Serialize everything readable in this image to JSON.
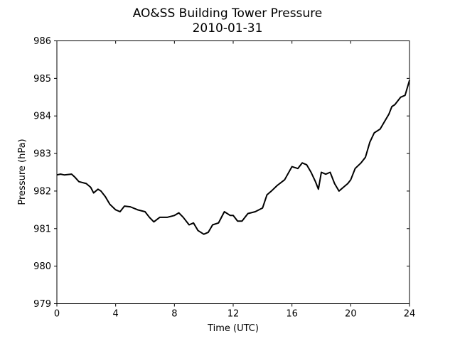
{
  "chart_data": {
    "type": "line",
    "title": "AO&SS Building Tower Pressure",
    "subtitle": "2010-01-31",
    "x_label": "Time (UTC)",
    "y_label": "Pressure (hPa)",
    "color": "#000000",
    "xlim": [
      0,
      24
    ],
    "ylim": [
      979,
      986
    ],
    "xticks": [
      0,
      4,
      8,
      12,
      16,
      20,
      24
    ],
    "yticks": [
      979,
      980,
      981,
      982,
      983,
      984,
      985,
      986
    ],
    "x": [
      0,
      0.25,
      0.5,
      1,
      1.2,
      1.5,
      2,
      2.3,
      2.5,
      2.8,
      3,
      3.3,
      3.6,
      4,
      4.3,
      4.6,
      5,
      5.5,
      6,
      6.3,
      6.6,
      7,
      7.5,
      8,
      8.3,
      8.6,
      9,
      9.3,
      9.6,
      10,
      10.3,
      10.6,
      11,
      11.4,
      11.8,
      12,
      12.3,
      12.6,
      13,
      13.5,
      14,
      14.3,
      14.6,
      15,
      15.5,
      16,
      16.4,
      16.7,
      17,
      17.3,
      17.6,
      17.8,
      18,
      18.3,
      18.6,
      18.9,
      19.2,
      19.5,
      19.8,
      20,
      20.3,
      20.7,
      21,
      21.3,
      21.6,
      22,
      22.3,
      22.6,
      22.8,
      23,
      23.4,
      23.7,
      24
    ],
    "values": [
      982.43,
      982.45,
      982.43,
      982.45,
      982.38,
      982.25,
      982.2,
      982.1,
      981.95,
      982.05,
      982.0,
      981.85,
      981.65,
      981.5,
      981.45,
      981.6,
      981.58,
      981.5,
      981.45,
      981.3,
      981.18,
      981.3,
      981.3,
      981.35,
      981.42,
      981.3,
      981.1,
      981.15,
      980.95,
      980.85,
      980.9,
      981.1,
      981.15,
      981.45,
      981.35,
      981.35,
      981.2,
      981.2,
      981.4,
      981.45,
      981.55,
      981.9,
      982.0,
      982.15,
      982.3,
      982.65,
      982.6,
      982.75,
      982.7,
      982.5,
      982.25,
      982.05,
      982.5,
      982.45,
      982.5,
      982.2,
      982.0,
      982.1,
      982.2,
      982.3,
      982.6,
      982.75,
      982.9,
      983.3,
      983.55,
      983.65,
      983.85,
      984.05,
      984.25,
      984.3,
      984.5,
      984.55,
      984.95
    ]
  }
}
